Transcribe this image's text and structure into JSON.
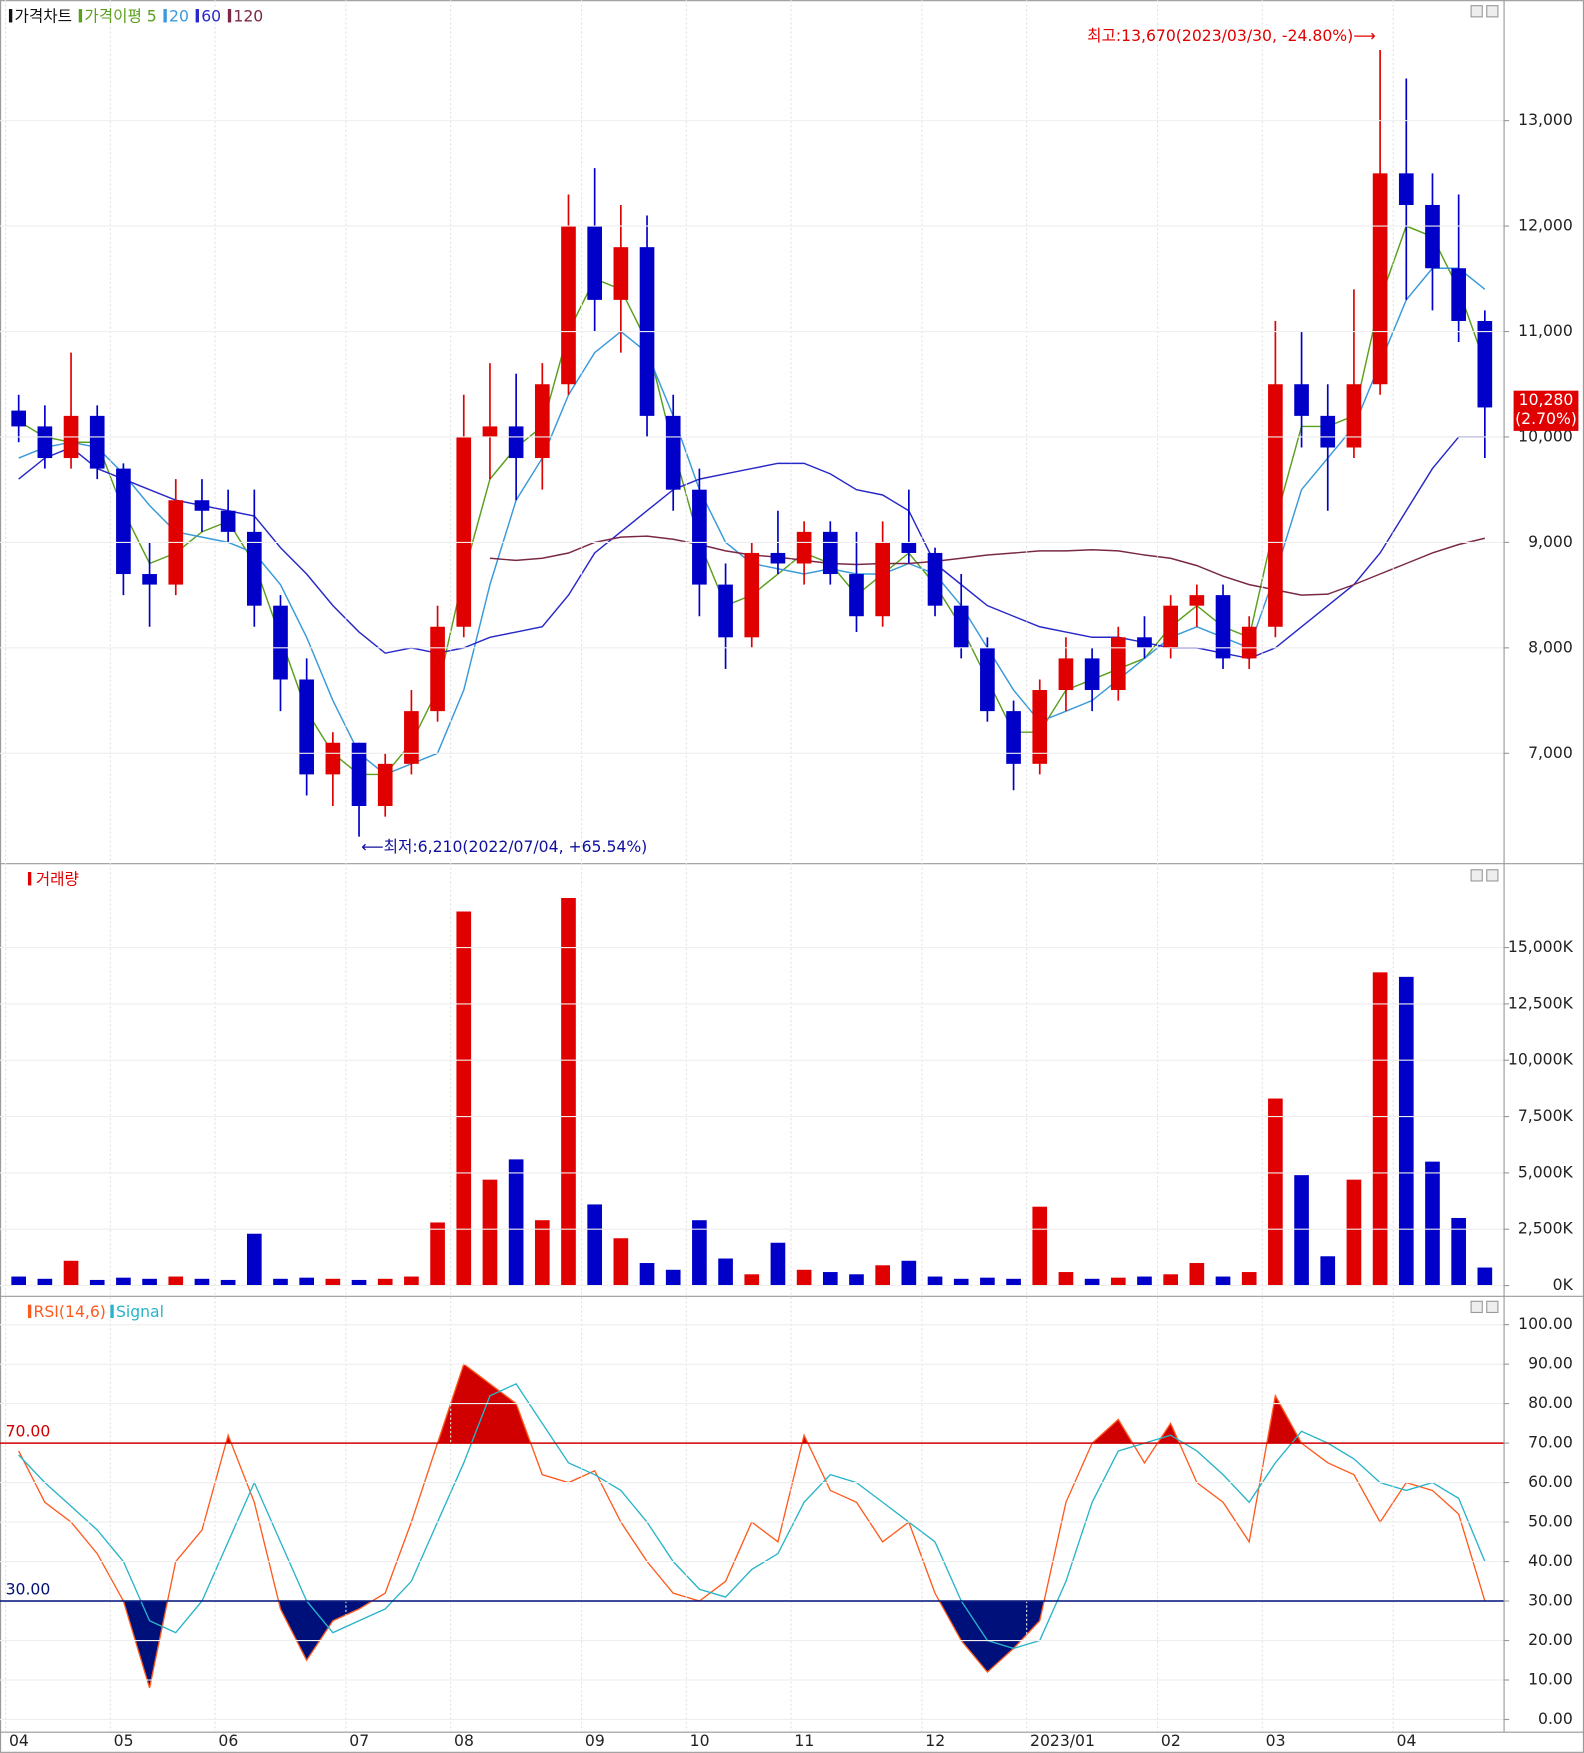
{
  "chart_data": [
    {
      "type": "candlestick",
      "name": "가격차트",
      "color_up": "#e00000",
      "color_down": "#0000c8",
      "categories": [
        "04",
        null,
        null,
        null,
        "05",
        null,
        null,
        null,
        "06",
        null,
        null,
        null,
        null,
        "07",
        null,
        null,
        null,
        "08",
        null,
        null,
        null,
        null,
        "09",
        null,
        null,
        null,
        "10",
        null,
        null,
        null,
        "11",
        null,
        null,
        null,
        null,
        "12",
        null,
        null,
        null,
        "2023/01",
        null,
        null,
        null,
        null,
        "02",
        null,
        null,
        null,
        "03",
        null,
        null,
        null,
        null,
        "04",
        null,
        null,
        null
      ],
      "open": [
        10250,
        10100,
        9800,
        10200,
        9700,
        8700,
        8600,
        9400,
        9300,
        9100,
        8400,
        7700,
        6800,
        7100,
        6500,
        6900,
        7400,
        8200,
        10000,
        10100,
        9800,
        10500,
        12000,
        11300,
        11800,
        10200,
        9500,
        8600,
        8100,
        8900,
        8800,
        9100,
        8700,
        8300,
        9000,
        8900,
        8400,
        8000,
        7400,
        6900,
        7600,
        7900,
        7600,
        8100,
        8000,
        8400,
        8500,
        7900,
        8200,
        10500,
        10200,
        9900,
        10500,
        12500,
        12200,
        11600,
        11100
      ],
      "high": [
        10400,
        10300,
        10800,
        10300,
        9750,
        9000,
        9600,
        9600,
        9500,
        9500,
        8500,
        7900,
        7200,
        7100,
        7000,
        7600,
        8400,
        10400,
        10700,
        10600,
        10700,
        12300,
        12550,
        12200,
        12100,
        10400,
        9700,
        8800,
        9000,
        9300,
        9200,
        9200,
        9100,
        9200,
        9500,
        8950,
        8700,
        8100,
        7500,
        7700,
        8100,
        8000,
        8200,
        8300,
        8500,
        8600,
        8600,
        8300,
        11100,
        11000,
        10500,
        11400,
        13670,
        13400,
        12500,
        12300,
        11200
      ],
      "low": [
        9950,
        9700,
        9700,
        9600,
        8500,
        8200,
        8500,
        9100,
        9000,
        8200,
        7400,
        6600,
        6500,
        6210,
        6400,
        6800,
        7300,
        8100,
        9600,
        9400,
        9500,
        10400,
        11000,
        10800,
        10000,
        9300,
        8300,
        7800,
        8000,
        8700,
        8600,
        8600,
        8150,
        8200,
        8800,
        8300,
        7900,
        7300,
        6650,
        6800,
        7400,
        7400,
        7500,
        7900,
        7900,
        8200,
        7800,
        7800,
        8100,
        9900,
        9300,
        9800,
        10400,
        11300,
        11200,
        10900,
        9800
      ],
      "close": [
        10100,
        9800,
        10200,
        9700,
        8700,
        8600,
        9400,
        9300,
        9100,
        8400,
        7700,
        6800,
        7100,
        6500,
        6900,
        7400,
        8200,
        10000,
        10100,
        9800,
        10500,
        12000,
        11300,
        11800,
        10200,
        9500,
        8600,
        8100,
        8900,
        8800,
        9100,
        8700,
        8300,
        9000,
        8900,
        8400,
        8000,
        7400,
        6900,
        7600,
        7900,
        7600,
        8100,
        8000,
        8400,
        8500,
        7900,
        8200,
        10500,
        10200,
        9900,
        10500,
        12500,
        12200,
        11600,
        11100,
        10280
      ],
      "overlays": [
        {
          "name": "가격이평 5",
          "color": "#5aa01e",
          "values": [
            10150,
            10000,
            9950,
            9950,
            9300,
            8800,
            8900,
            9100,
            9200,
            8800,
            8100,
            7400,
            7000,
            6800,
            6800,
            7100,
            7600,
            8700,
            9600,
            9900,
            10100,
            11000,
            11500,
            11400,
            10900,
            9900,
            9000,
            8400,
            8500,
            8700,
            8900,
            8800,
            8500,
            8700,
            8900,
            8600,
            8200,
            7700,
            7200,
            7200,
            7600,
            7700,
            7800,
            7900,
            8200,
            8400,
            8200,
            8100,
            9200,
            10100,
            10100,
            10200,
            11300,
            12000,
            11900,
            11400,
            10700
          ]
        },
        {
          "name": "20",
          "color": "#3a9ad9",
          "values": [
            9800,
            9900,
            9950,
            9900,
            9650,
            9350,
            9100,
            9050,
            9000,
            8900,
            8600,
            8100,
            7500,
            7000,
            6800,
            6900,
            7000,
            7600,
            8600,
            9400,
            9800,
            10400,
            10800,
            11000,
            10800,
            10200,
            9500,
            9000,
            8800,
            8750,
            8700,
            8750,
            8700,
            8700,
            8800,
            8700,
            8400,
            8000,
            7600,
            7300,
            7400,
            7500,
            7700,
            7900,
            8100,
            8200,
            8100,
            8000,
            8700,
            9500,
            9800,
            10100,
            10700,
            11300,
            11600,
            11600,
            11400
          ]
        },
        {
          "name": "60",
          "color": "#2828c8",
          "values": [
            9600,
            9800,
            9900,
            9700,
            9600,
            9500,
            9400,
            9350,
            9300,
            9250,
            8950,
            8700,
            8400,
            8150,
            7950,
            8000,
            7950,
            8000,
            8100,
            8150,
            8200,
            8500,
            8900,
            9100,
            9300,
            9500,
            9600,
            9650,
            9700,
            9750,
            9750,
            9650,
            9500,
            9450,
            9300,
            8800,
            8600,
            8400,
            8300,
            8200,
            8150,
            8100,
            8100,
            8050,
            8000,
            8000,
            7950,
            7900,
            8000,
            8200,
            8400,
            8600,
            8900,
            9300,
            9700,
            10000,
            10000
          ]
        },
        {
          "name": "120",
          "color": "#7a2848",
          "values": [
            null,
            null,
            null,
            null,
            null,
            null,
            null,
            null,
            null,
            null,
            null,
            null,
            null,
            null,
            null,
            null,
            null,
            null,
            8850,
            8830,
            8850,
            8900,
            9000,
            9050,
            9060,
            9030,
            8980,
            8920,
            8880,
            8860,
            8830,
            8800,
            8790,
            8800,
            8800,
            8820,
            8850,
            8880,
            8900,
            8920,
            8920,
            8930,
            8920,
            8880,
            8850,
            8780,
            8680,
            8600,
            8550,
            8500,
            8510,
            8600,
            8700,
            8800,
            8900,
            8980,
            9040
          ]
        }
      ],
      "ylim": [
        5980,
        14090
      ],
      "yticks": [
        {
          "value": 7000,
          "label": "7,000"
        },
        {
          "value": 8000,
          "label": "8,000"
        },
        {
          "value": 9000,
          "label": "9,000"
        },
        {
          "value": 10000,
          "label": "10,000"
        },
        {
          "value": 11000,
          "label": "11,000"
        },
        {
          "value": 12000,
          "label": "12,000"
        },
        {
          "value": 13000,
          "label": "13,000"
        }
      ],
      "high_label": "최고:13,670(2023/03/30, -24.80%)⟶",
      "low_label": "⟵최저:6,210(2022/07/04, +65.54%)",
      "last_price": {
        "value": 10280,
        "label": "10,280"
      },
      "change_label": "(2.70%)"
    },
    {
      "type": "bar",
      "title": "거래량",
      "color": "#e00000",
      "values": [
        400,
        300,
        1100,
        250,
        350,
        300,
        400,
        300,
        250,
        2300,
        300,
        350,
        300,
        250,
        300,
        400,
        2800,
        16600,
        4700,
        5600,
        2900,
        17200,
        3600,
        2100,
        1000,
        700,
        2900,
        1200,
        500,
        1900,
        700,
        600,
        500,
        900,
        1100,
        400,
        300,
        350,
        300,
        3500,
        600,
        300,
        350,
        400,
        500,
        1000,
        400,
        600,
        8300,
        4900,
        1300,
        4700,
        13900,
        13700,
        5500,
        3000,
        800
      ],
      "ylim": [
        -400,
        18600
      ],
      "yticks": [
        {
          "value": 0,
          "label": "0K"
        },
        {
          "value": 2500,
          "label": "2,500K"
        },
        {
          "value": 5000,
          "label": "5,000K"
        },
        {
          "value": 7500,
          "label": "7,500K"
        },
        {
          "value": 10000,
          "label": "10,000K"
        },
        {
          "value": 12500,
          "label": "12,500K"
        },
        {
          "value": 15000,
          "label": "15,000K"
        }
      ]
    },
    {
      "type": "line",
      "series": [
        {
          "name": "RSI(14,6)",
          "color": "#ff5a1e",
          "values": [
            68,
            55,
            50,
            42,
            30,
            8,
            40,
            48,
            72,
            55,
            28,
            15,
            25,
            28,
            32,
            50,
            70,
            90,
            85,
            80,
            62,
            60,
            63,
            50,
            40,
            32,
            30,
            35,
            50,
            45,
            72,
            58,
            55,
            45,
            50,
            32,
            20,
            12,
            18,
            25,
            55,
            70,
            76,
            65,
            75,
            60,
            55,
            45,
            82,
            70,
            65,
            62,
            50,
            60,
            58,
            52,
            30
          ]
        },
        {
          "name": "Signal",
          "color": "#28b4c8",
          "values": [
            67,
            60,
            54,
            48,
            40,
            25,
            22,
            30,
            45,
            60,
            45,
            30,
            22,
            25,
            28,
            35,
            50,
            65,
            82,
            85,
            75,
            65,
            62,
            58,
            50,
            40,
            33,
            31,
            38,
            42,
            55,
            62,
            60,
            55,
            50,
            45,
            30,
            20,
            18,
            20,
            35,
            55,
            68,
            70,
            72,
            68,
            62,
            55,
            65,
            73,
            70,
            66,
            60,
            58,
            60,
            56,
            40
          ]
        }
      ],
      "ylim": [
        -2.8,
        106.2
      ],
      "yticks": [
        {
          "value": 0,
          "label": "0.00"
        },
        {
          "value": 10,
          "label": "10.00"
        },
        {
          "value": 20,
          "label": "20.00"
        },
        {
          "value": 30,
          "label": "30.00"
        },
        {
          "value": 40,
          "label": "40.00"
        },
        {
          "value": 50,
          "label": "50.00"
        },
        {
          "value": 60,
          "label": "60.00"
        },
        {
          "value": 70,
          "label": "70.00"
        },
        {
          "value": 80,
          "label": "80.00"
        },
        {
          "value": 90,
          "label": "90.00"
        },
        {
          "value": 100,
          "label": "100.00"
        }
      ],
      "upper": {
        "value": 70,
        "label": "70.00"
      },
      "lower": {
        "value": 30,
        "label": "30.00"
      },
      "upper_color": "#d00000",
      "lower_color": "#00107a"
    }
  ]
}
